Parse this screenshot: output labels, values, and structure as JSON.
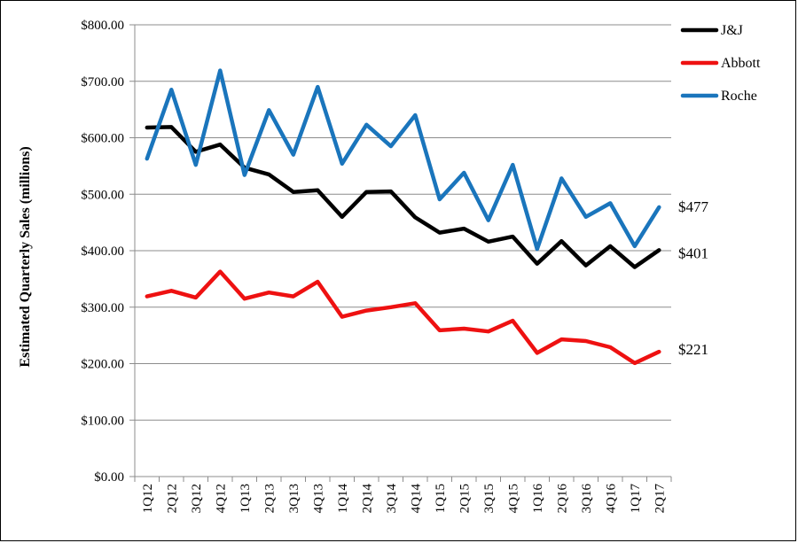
{
  "chart_data": {
    "type": "line",
    "title": "",
    "xlabel": "",
    "ylabel": "Estimated Quarterly Sales (millions)",
    "ylim": [
      0,
      800
    ],
    "ytick_step": 100,
    "ytick_labels": [
      "$0.00",
      "$100.00",
      "$200.00",
      "$300.00",
      "$400.00",
      "$500.00",
      "$600.00",
      "$700.00",
      "$800.00"
    ],
    "grid": true,
    "legend_position": "top-right",
    "categories": [
      "1Q12",
      "2Q12",
      "3Q12",
      "4Q12",
      "1Q13",
      "2Q13",
      "3Q13",
      "4Q13",
      "1Q14",
      "2Q14",
      "3Q14",
      "4Q14",
      "1Q15",
      "2Q15",
      "3Q15",
      "4Q15",
      "1Q16",
      "2Q16",
      "3Q16",
      "4Q16",
      "1Q17",
      "2Q17"
    ],
    "series": [
      {
        "name": "J&J",
        "color": "#000000",
        "values": [
          618,
          619,
          575,
          588,
          547,
          535,
          504,
          507,
          460,
          504,
          505,
          459,
          432,
          439,
          416,
          425,
          377,
          417,
          374,
          408,
          371,
          401
        ],
        "end_label": "$401"
      },
      {
        "name": "Abbott",
        "color": "#ee1111",
        "values": [
          319,
          329,
          317,
          363,
          315,
          326,
          319,
          345,
          283,
          294,
          300,
          307,
          259,
          262,
          257,
          276,
          219,
          243,
          240,
          229,
          201,
          221
        ],
        "end_label": "$221"
      },
      {
        "name": "Roche",
        "color": "#1a75bc",
        "values": [
          563,
          685,
          552,
          719,
          534,
          649,
          570,
          690,
          554,
          623,
          585,
          640,
          491,
          538,
          454,
          552,
          403,
          528,
          460,
          484,
          408,
          477
        ],
        "end_label": "$477"
      }
    ]
  }
}
